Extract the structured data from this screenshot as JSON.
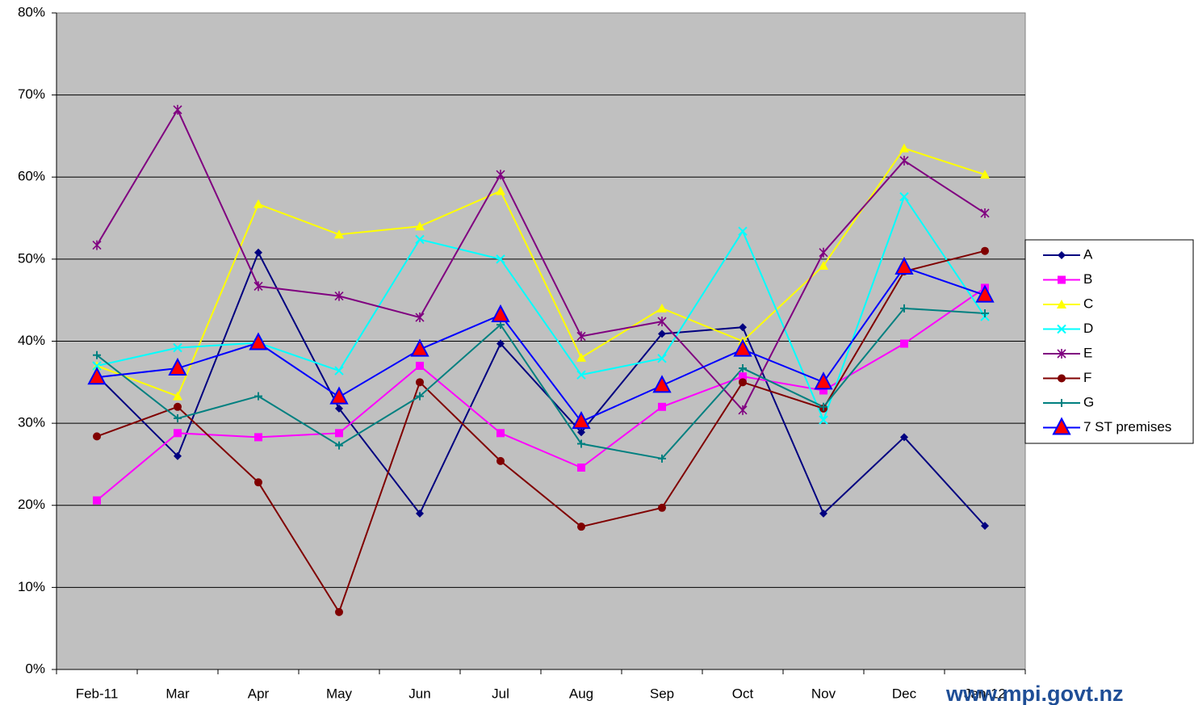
{
  "chart_data": {
    "type": "line",
    "categories": [
      "Feb-11",
      "Mar",
      "Apr",
      "May",
      "Jun",
      "Jul",
      "Aug",
      "Sep",
      "Oct",
      "Nov",
      "Dec",
      "Jan-12"
    ],
    "ylim": [
      0,
      80
    ],
    "yticks": [
      {
        "value": 0,
        "label": "0%"
      },
      {
        "value": 10,
        "label": "10%"
      },
      {
        "value": 20,
        "label": "20%"
      },
      {
        "value": 30,
        "label": "30%"
      },
      {
        "value": 40,
        "label": "40%"
      },
      {
        "value": 50,
        "label": "50%"
      },
      {
        "value": 60,
        "label": "60%"
      },
      {
        "value": 70,
        "label": "70%"
      },
      {
        "value": 80,
        "label": "80%"
      }
    ],
    "grid": true,
    "legend": "right",
    "background": "#C0C0C0",
    "series": [
      {
        "name": "A",
        "color": "#000080",
        "marker": "diamond",
        "values": [
          35.8,
          26.0,
          50.8,
          31.8,
          19.0,
          39.7,
          28.9,
          40.9,
          41.7,
          19.0,
          28.3,
          17.5
        ]
      },
      {
        "name": "B",
        "color": "#FF00FF",
        "marker": "square",
        "values": [
          20.6,
          28.8,
          28.3,
          28.8,
          37.0,
          28.8,
          24.6,
          32.0,
          35.7,
          34.0,
          39.7,
          46.5
        ]
      },
      {
        "name": "C",
        "color": "#FFFF00",
        "marker": "triangle",
        "values": [
          37.0,
          33.3,
          56.7,
          53.0,
          54.0,
          58.3,
          38.0,
          44.0,
          40.0,
          49.2,
          63.5,
          60.3
        ]
      },
      {
        "name": "D",
        "color": "#00FFFF",
        "marker": "x",
        "values": [
          37.0,
          39.2,
          39.8,
          36.4,
          52.4,
          50.0,
          35.9,
          37.9,
          53.4,
          30.4,
          57.6,
          43.0
        ]
      },
      {
        "name": "E",
        "color": "#800080",
        "marker": "star",
        "values": [
          51.7,
          68.2,
          46.7,
          45.5,
          42.9,
          60.3,
          40.6,
          42.4,
          31.6,
          50.8,
          62.0,
          55.6
        ]
      },
      {
        "name": "F",
        "color": "#800000",
        "marker": "circle",
        "values": [
          28.4,
          32.0,
          22.8,
          7.0,
          35.0,
          25.4,
          17.4,
          19.7,
          35.0,
          31.8,
          48.5,
          51.0
        ]
      },
      {
        "name": "G",
        "color": "#008080",
        "marker": "plus",
        "values": [
          38.3,
          30.6,
          33.3,
          27.3,
          33.3,
          42.0,
          27.5,
          25.7,
          36.7,
          32.0,
          44.0,
          43.4
        ]
      },
      {
        "name": "7 ST premises",
        "color": "#0000FF",
        "marker": "bigtriangle",
        "marker_color": "#FF0000",
        "values": [
          35.6,
          36.7,
          39.8,
          33.2,
          39.0,
          43.2,
          30.2,
          34.6,
          39.0,
          35.0,
          49.0,
          45.6
        ]
      }
    ],
    "watermark": "www.mpi.govt.nz"
  }
}
